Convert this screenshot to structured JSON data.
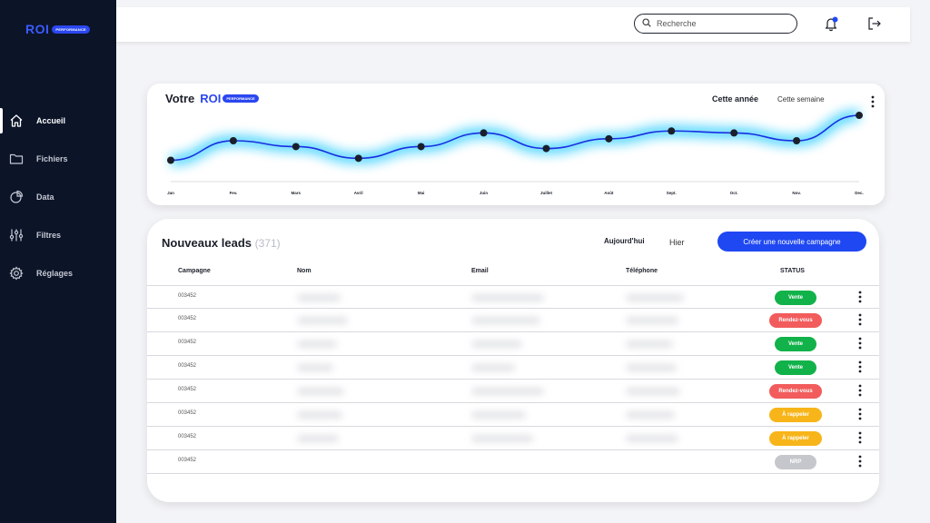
{
  "brand": {
    "logo_text": "ROI",
    "logo_badge": "PERFORMANCE"
  },
  "sidebar": {
    "items": [
      {
        "label": "Accueil",
        "icon": "home-icon",
        "active": true
      },
      {
        "label": "Fichiers",
        "icon": "folder-icon",
        "active": false
      },
      {
        "label": "Data",
        "icon": "pie-chart-icon",
        "active": false
      },
      {
        "label": "Filtres",
        "icon": "sliders-icon",
        "active": false
      },
      {
        "label": "Réglages",
        "icon": "gear-icon",
        "active": false
      }
    ]
  },
  "topbar": {
    "search_placeholder": "Recherche",
    "notification_icon": "bell-icon",
    "logout_icon": "logout-icon"
  },
  "chart_card": {
    "title": "Votre",
    "brand": "ROI",
    "brand_badge": "PERFORMANCE",
    "periods": [
      "Cette année",
      "Cette semaine"
    ],
    "active_period": "Cette année"
  },
  "chart_data": {
    "type": "line",
    "categories": [
      "Jan",
      "Fev.",
      "Mars",
      "Avril",
      "Mai",
      "Juin",
      "Juillet",
      "Août",
      "Sept.",
      "Oct.",
      "Nov.",
      "Dec."
    ],
    "values": [
      1.0,
      2.0,
      1.7,
      1.1,
      1.7,
      2.4,
      1.6,
      2.1,
      2.5,
      2.4,
      2.0,
      3.3
    ],
    "title": "",
    "xlabel": "",
    "ylabel": "",
    "ylim": [
      0,
      4
    ],
    "grid": false,
    "line_color": "#1a2fe0",
    "glow_color": "#15c8ff"
  },
  "leads": {
    "title": "Nouveaux leads",
    "count": "(371)",
    "filters": [
      "Aujourd'hui",
      "Hier"
    ],
    "create_button": "Créer une nouvelle campagne",
    "columns": [
      "Campagne",
      "Nom",
      "Email",
      "Téléphone",
      "STATUS"
    ],
    "rows": [
      {
        "campagne": "003452",
        "status": "Vente",
        "color": "#12b24a"
      },
      {
        "campagne": "003452",
        "status": "Rendez-vous",
        "color": "#f25c5c"
      },
      {
        "campagne": "003452",
        "status": "Vente",
        "color": "#12b24a"
      },
      {
        "campagne": "003452",
        "status": "Vente",
        "color": "#12b24a"
      },
      {
        "campagne": "003452",
        "status": "Rendez-vous",
        "color": "#f25c5c"
      },
      {
        "campagne": "003452",
        "status": "À rappeler",
        "color": "#f7b51a"
      },
      {
        "campagne": "003452",
        "status": "À rappeler",
        "color": "#f7b51a"
      },
      {
        "campagne": "003452",
        "status": "NRP",
        "color": "#c6c7cc"
      }
    ]
  }
}
